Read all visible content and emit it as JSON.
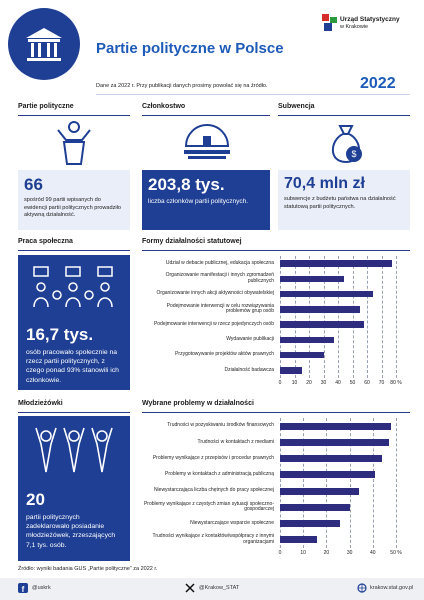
{
  "header": {
    "title": "Partie polityczne w Polsce",
    "org_line1": "Urząd Statystyczny",
    "org_line2": "w Krakowie",
    "note": "Dane za 2022 r. Przy publikacji danych prosimy powołać się na źródło.",
    "year": "2022"
  },
  "cards": [
    {
      "heading": "Partie polityczne",
      "value": "66",
      "text": "spośród 99 partii wpisanych do ewidencji partii politycznych prowadziło aktywną działalność."
    },
    {
      "heading": "Członkostwo",
      "value": "203,8 tys.",
      "text": "liczba członków partii politycznych."
    },
    {
      "heading": "Subwencja",
      "value": "70,4 mln zł",
      "text": "subwencje z budżetu państwa na działalność statutową partii politycznych."
    },
    {
      "heading": "Praca społeczna",
      "value": "16,7 tys.",
      "text": "osób pracowało społecznie na rzecz partii politycznych, z czego ponad 93% stanowili ich członkowie."
    },
    {
      "heading": "Młodzieżówki",
      "value": "20",
      "text": "partii politycznych zadeklarowało posiadanie młodzieżówek, zrzeszających 7,1 tys. osób."
    }
  ],
  "chart_data": [
    {
      "type": "hbar",
      "title": "Formy działalności statutowej",
      "color": "#2e2c7e",
      "categories": [
        "Udział w debacie publicznej, edukacja społeczna",
        "Organizowanie manifestacji i innych zgromadzeń publicznych",
        "Organizowanie innych akcji aktywności obywatelskiej",
        "Podejmowanie interwencji w celu rozwiązywania problemów grup osób",
        "Podejmowanie interwencji w rzecz pojedynczych osób",
        "Wydawanie publikacji",
        "Przygotowywanie projektów aktów prawnych",
        "Działalność badawcza"
      ],
      "values": [
        77,
        44,
        64,
        55,
        58,
        37,
        30,
        15
      ],
      "xlim": [
        0,
        80
      ],
      "xticks": [
        0,
        10,
        20,
        30,
        40,
        50,
        60,
        70,
        {
          "value": 80,
          "label": "80 %"
        }
      ],
      "grid": true
    },
    {
      "type": "hbar",
      "title": "Wybrane problemy w działalności",
      "color": "#2e2c7e",
      "categories": [
        "Trudności w pozyskiwaniu środków finansowych",
        "Trudności w kontaktach z mediami",
        "Problemy wynikające z przepisów i procedur prawnych",
        "Problemy w kontaktach z administracją publiczną",
        "Niewystarczająca liczba chętnych do pracy społecznej",
        "Problemy wynikające z częstych zmian sytuacji społeczno-gospodarczej",
        "Niewystarczające wsparcie społeczne",
        "Trudności wynikające z kontaktów/współpracy z innymi organizacjami"
      ],
      "values": [
        48,
        47,
        44,
        41,
        34,
        30,
        26,
        16
      ],
      "xlim": [
        0,
        50
      ],
      "xticks": [
        0,
        10,
        20,
        30,
        40,
        {
          "value": 50,
          "label": "50 %"
        }
      ],
      "grid": true
    }
  ],
  "footer": {
    "source": "Źródło: wyniki badania GUS „Partie polityczne” za 2022 r.",
    "facebook": "@uskrk",
    "x": "@Krakow_STAT",
    "web": "krakow.stat.gov.pl"
  }
}
